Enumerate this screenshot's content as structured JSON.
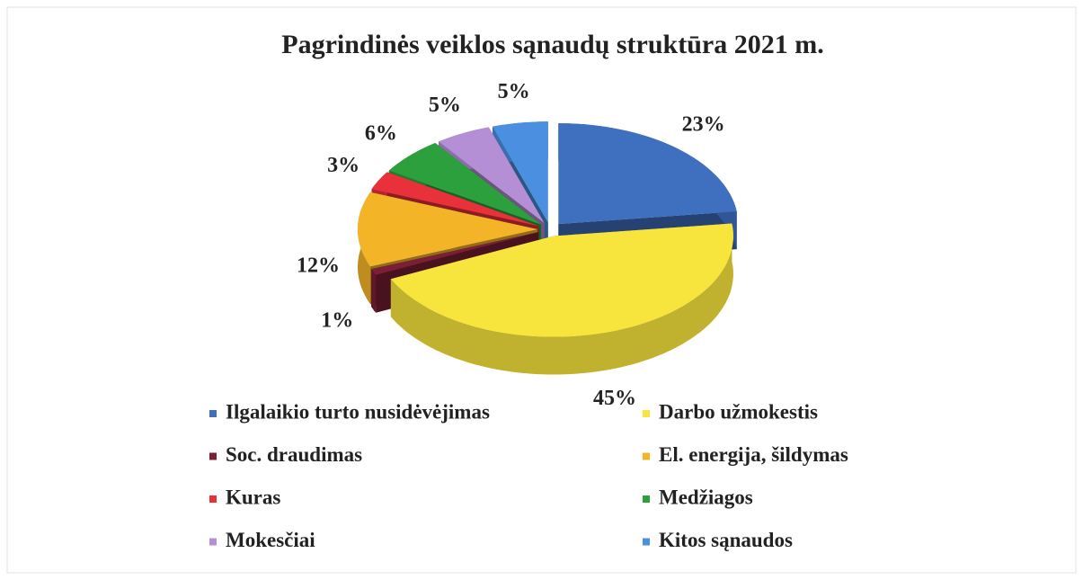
{
  "chart_data": {
    "type": "pie3d",
    "title": "Pagrindinės veiklos sąnaudų struktūra 2021 m.",
    "categories": [
      "Ilgalaikio turto nusidėvėjimas",
      "Darbo užmokestis",
      "Soc. draudimas",
      "El. energija, šildymas",
      "Kuras",
      "Medžiagos",
      "Mokesčiai",
      "Kitos sąnaudos"
    ],
    "values": [
      23,
      45,
      1,
      12,
      3,
      6,
      5,
      5
    ],
    "value_labels": [
      "23%",
      "45%",
      "1%",
      "12%",
      "3%",
      "6%",
      "5%",
      "5%"
    ],
    "colors": [
      "#3f6fbf",
      "#f7e43c",
      "#7a1f35",
      "#f4b428",
      "#e8313a",
      "#2ba03c",
      "#b48fd6",
      "#4a8fe0"
    ],
    "legend": "bottom"
  }
}
